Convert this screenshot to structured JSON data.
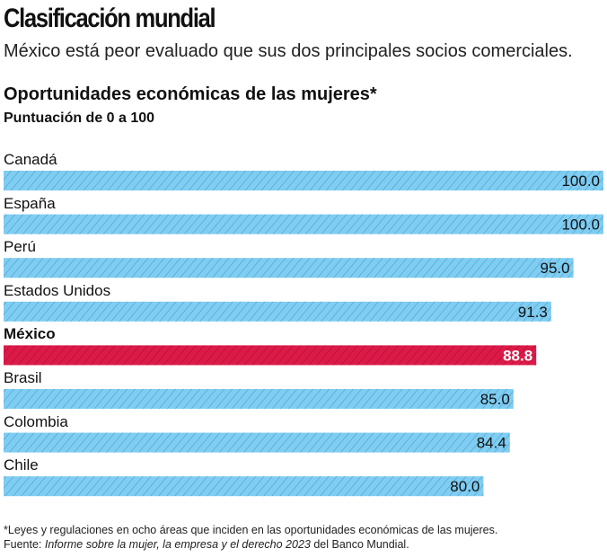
{
  "header": {
    "title": "Clasificación mundial",
    "subtitle": "México está peor evaluado que sus dos principales socios comerciales."
  },
  "chart_data": {
    "type": "bar",
    "orientation": "horizontal",
    "title": "Oportunidades económicas de las mujeres*",
    "subtitle": "Puntuación de 0 a 100",
    "categories": [
      "Canadá",
      "España",
      "Perú",
      "Estados Unidos",
      "México",
      "Brasil",
      "Colombia",
      "Chile"
    ],
    "values": [
      100.0,
      100.0,
      95.0,
      91.3,
      88.8,
      85.0,
      84.4,
      80.0
    ],
    "value_labels": [
      "100.0",
      "100.0",
      "95.0",
      "91.3",
      "88.8",
      "85.0",
      "84.4",
      "80.0"
    ],
    "highlight": "México",
    "xlim": [
      0,
      100
    ],
    "colors": {
      "default": "#7fcdf2",
      "highlight": "#dc1a48",
      "hatch_default": "#5aa8cf",
      "hatch_highlight": "#b5123a"
    }
  },
  "footer": {
    "note": "*Leyes y regulaciones en ocho áreas que inciden en las oportunidades económicas de las mujeres.",
    "source_prefix": "Fuente: ",
    "source_italic": "Informe sobre la mujer, la empresa y el derecho 2023",
    "source_suffix": " del Banco Mundial."
  }
}
